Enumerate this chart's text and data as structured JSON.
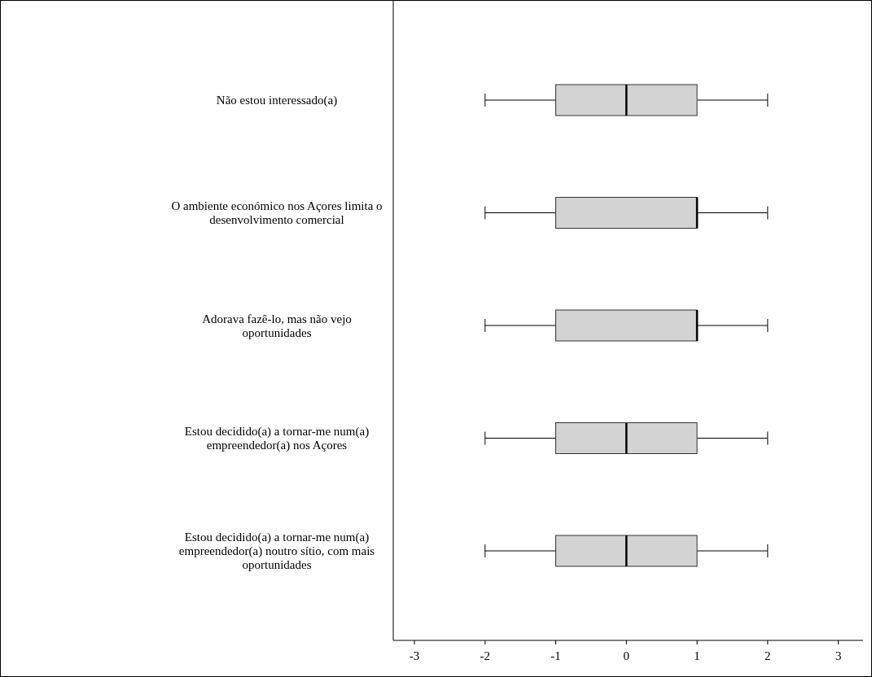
{
  "chart_data": {
    "type": "box",
    "orientation": "horizontal",
    "categories": [
      "Não estou interessado(a)",
      "O ambiente económico nos Açores limita o desenvolvimento comercial",
      "Adorava fazê-lo, mas não vejo oportunidades",
      "Estou decidido(a) a tornar-me num(a) empreendedor(a) nos Açores",
      "Estou decidido(a) a tornar-me num(a) empreendedor(a) noutro sítio, com mais oportunidades"
    ],
    "boxes": [
      {
        "low": -2,
        "q1": -1,
        "median": 0,
        "q3": 1,
        "high": 2
      },
      {
        "low": -2,
        "q1": -1,
        "median": 1,
        "q3": 1,
        "high": 2
      },
      {
        "low": -2,
        "q1": -1,
        "median": 1,
        "q3": 1,
        "high": 2
      },
      {
        "low": -2,
        "q1": -1,
        "median": 0,
        "q3": 1,
        "high": 2
      },
      {
        "low": -2,
        "q1": -1,
        "median": 0,
        "q3": 1,
        "high": 2
      }
    ],
    "color": "#d3d3d3",
    "xlim": [
      -3.3,
      3.35
    ],
    "xticks": [
      -3,
      -2,
      -1,
      0,
      1,
      2,
      3
    ],
    "grid": false
  }
}
